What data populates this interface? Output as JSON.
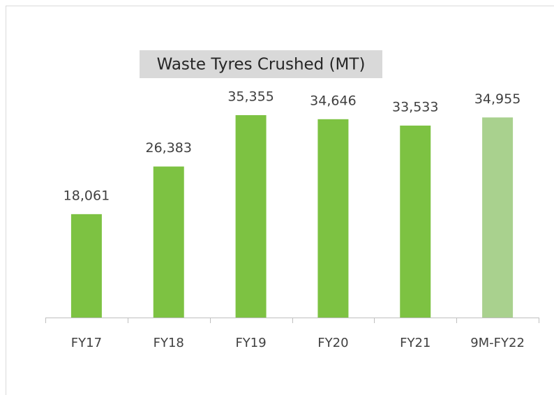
{
  "chart_data": {
    "type": "bar",
    "title": "Waste Tyres Crushed (MT)",
    "categories": [
      "FY17",
      "FY18",
      "FY19",
      "FY20",
      "FY21",
      "9M-FY22"
    ],
    "values": [
      18061,
      26383,
      35355,
      34646,
      33533,
      34955
    ],
    "value_labels": [
      "18,061",
      "26,383",
      "35,355",
      "34,646",
      "33,533",
      "34,955"
    ],
    "colors": [
      "#7dc242",
      "#7dc242",
      "#7dc242",
      "#7dc242",
      "#7dc242",
      "#a9d18e"
    ]
  }
}
